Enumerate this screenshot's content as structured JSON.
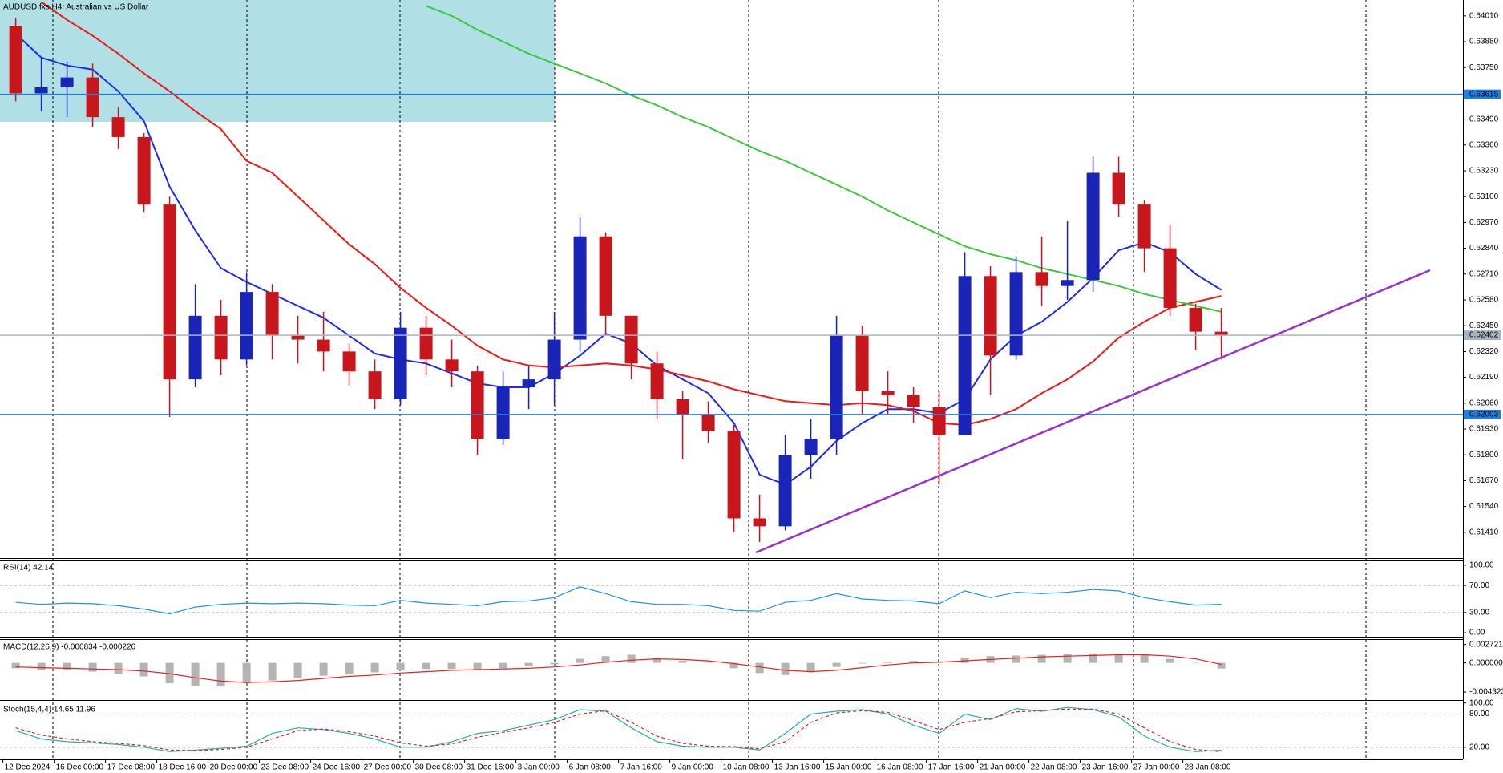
{
  "chart_data": [
    {
      "type": "candlestick",
      "title": "AUDUSD.fxs,H4:  Australian vs US Dollar",
      "categories": [
        "12 Dec 2024",
        null,
        "16 Dec 00:00",
        null,
        "17 Dec 08:00",
        null,
        "18 Dec 16:00",
        null,
        "20 Dec 00:00",
        null,
        "23 Dec 08:00",
        null,
        "24 Dec 16:00",
        null,
        "27 Dec 00:00",
        null,
        "30 Dec 08:00",
        null,
        "31 Dec 16:00",
        null,
        "3 Jan 00:00",
        null,
        "6 Jan 08:00",
        null,
        "7 Jan 16:00",
        null,
        "9 Jan 00:00",
        null,
        "10 Jan 08:00",
        null,
        "13 Jan 16:00",
        null,
        "15 Jan 00:00",
        null,
        "16 Jan 08:00",
        null,
        "17 Jan 16:00",
        null,
        "21 Jan 00:00",
        null,
        "22 Jan 08:00",
        null,
        "23 Jan 16:00",
        null,
        "27 Jan 00:00",
        null,
        "28 Jan 08:00",
        null
      ],
      "open": [
        0.6396,
        0.6362,
        0.6365,
        0.637,
        0.635,
        0.634,
        0.6306,
        0.6218,
        0.625,
        0.6228,
        0.6262,
        0.624,
        0.6238,
        0.6232,
        0.6222,
        0.6208,
        0.6244,
        0.6228,
        0.6222,
        0.6188,
        0.6214,
        0.6218,
        0.6238,
        0.629,
        0.625,
        0.6226,
        0.6208,
        0.62,
        0.6192,
        0.6148,
        0.6144,
        0.618,
        0.6188,
        0.624,
        0.6212,
        0.621,
        0.6204,
        0.619,
        0.627,
        0.623,
        0.6272,
        0.6265,
        0.6268,
        0.6322,
        0.6306,
        0.6284,
        0.6254,
        0.6242
      ],
      "high": [
        0.64,
        0.638,
        0.6378,
        0.6377,
        0.6355,
        0.6342,
        0.631,
        0.6266,
        0.6258,
        0.6272,
        0.6266,
        0.625,
        0.6252,
        0.6236,
        0.6228,
        0.6252,
        0.625,
        0.6238,
        0.6225,
        0.6222,
        0.6225,
        0.6252,
        0.63,
        0.6292,
        0.625,
        0.6232,
        0.6212,
        0.6207,
        0.6195,
        0.616,
        0.619,
        0.6198,
        0.625,
        0.6245,
        0.6222,
        0.6214,
        0.6212,
        0.6282,
        0.6275,
        0.628,
        0.629,
        0.6298,
        0.633,
        0.633,
        0.6308,
        0.6296,
        0.6256,
        0.6254
      ],
      "low": [
        0.6358,
        0.6353,
        0.635,
        0.6345,
        0.6334,
        0.6302,
        0.6199,
        0.6214,
        0.622,
        0.6225,
        0.6228,
        0.6226,
        0.6222,
        0.6215,
        0.6203,
        0.6205,
        0.622,
        0.6214,
        0.618,
        0.6185,
        0.6203,
        0.6205,
        0.6232,
        0.624,
        0.6218,
        0.6198,
        0.6178,
        0.6186,
        0.6141,
        0.6136,
        0.6142,
        0.6168,
        0.618,
        0.62,
        0.62,
        0.6196,
        0.6165,
        0.619,
        0.621,
        0.6228,
        0.6255,
        0.6258,
        0.6262,
        0.63,
        0.6272,
        0.625,
        0.6233,
        0.6228
      ],
      "close": [
        0.6362,
        0.6365,
        0.637,
        0.635,
        0.634,
        0.6306,
        0.6218,
        0.625,
        0.6228,
        0.6262,
        0.624,
        0.6238,
        0.6232,
        0.6222,
        0.6208,
        0.6244,
        0.6228,
        0.6222,
        0.6188,
        0.6214,
        0.6218,
        0.6238,
        0.629,
        0.625,
        0.6226,
        0.6208,
        0.62,
        0.6192,
        0.6148,
        0.6144,
        0.618,
        0.6188,
        0.624,
        0.6212,
        0.621,
        0.6204,
        0.619,
        0.627,
        0.623,
        0.6272,
        0.6265,
        0.6268,
        0.6322,
        0.6306,
        0.6284,
        0.6254,
        0.6242,
        0.62402
      ],
      "up_color": "#1a24b8",
      "down_color": "#c8161d",
      "overlays": [
        {
          "color": "#1c2cf0",
          "values": [
            0.6392,
            0.638,
            0.6376,
            0.6374,
            0.6363,
            0.6348,
            0.6315,
            0.6293,
            0.6274,
            0.6267,
            0.6261,
            0.6255,
            0.6249,
            0.624,
            0.6231,
            0.6228,
            0.6226,
            0.6221,
            0.6216,
            0.6214,
            0.6214,
            0.6221,
            0.623,
            0.6241,
            0.6236,
            0.6225,
            0.6218,
            0.6211,
            0.6196,
            0.617,
            0.6165,
            0.6174,
            0.6187,
            0.6196,
            0.6203,
            0.6203,
            0.6201,
            0.6208,
            0.6228,
            0.624,
            0.6247,
            0.6257,
            0.6269,
            0.6283,
            0.6287,
            0.6282,
            0.6271,
            0.6263
          ]
        },
        {
          "color": "#f01818",
          "values": [
            null,
            0.6408,
            0.6399,
            0.6391,
            0.6382,
            0.6372,
            0.6363,
            0.6353,
            0.6344,
            0.6328,
            0.6322,
            0.631,
            0.6298,
            0.6286,
            0.6276,
            0.6264,
            0.6254,
            0.6245,
            0.6235,
            0.6228,
            0.6225,
            0.6224,
            0.6225,
            0.6226,
            0.6225,
            0.6223,
            0.622,
            0.6217,
            0.6213,
            0.621,
            0.6207,
            0.6206,
            0.6205,
            0.6206,
            0.6205,
            0.6202,
            0.6196,
            0.6195,
            0.6198,
            0.6203,
            0.6211,
            0.6218,
            0.6227,
            0.6239,
            0.6247,
            0.6254,
            0.6257,
            0.626
          ]
        },
        {
          "color": "#3cc83c",
          "values": [
            null,
            null,
            null,
            null,
            null,
            null,
            null,
            null,
            null,
            null,
            null,
            null,
            null,
            null,
            null,
            null,
            0.6406,
            0.6401,
            0.6394,
            0.6388,
            0.6382,
            0.6377,
            0.6372,
            0.6367,
            0.6361,
            0.6356,
            0.635,
            0.6345,
            0.6339,
            0.6333,
            0.6328,
            0.6322,
            0.6316,
            0.631,
            0.6303,
            0.6297,
            0.6291,
            0.6285,
            0.6281,
            0.6278,
            0.6274,
            0.6271,
            0.6268,
            0.6265,
            0.6261,
            0.6258,
            0.6255,
            0.6252
          ]
        }
      ],
      "hlines": [
        {
          "value": 0.63615,
          "color": "#1e7fe0"
        },
        {
          "value": 0.62003,
          "color": "#1e7fe0"
        },
        {
          "value": 0.62402,
          "color": "#a9b4c2"
        }
      ],
      "ylim": [
        0.6128,
        0.6409
      ],
      "yticks": [
        {
          "value": 0.6401,
          "label": "0.64010"
        },
        {
          "value": 0.6388,
          "label": "0.63880"
        },
        {
          "value": 0.6375,
          "label": "0.63750"
        },
        {
          "value": 0.6349,
          "label": "0.63490"
        },
        {
          "value": 0.6336,
          "label": "0.63360"
        },
        {
          "value": 0.6323,
          "label": "0.63230"
        },
        {
          "value": 0.631,
          "label": "0.63100"
        },
        {
          "value": 0.6297,
          "label": "0.62970"
        },
        {
          "value": 0.6284,
          "label": "0.62840"
        },
        {
          "value": 0.6271,
          "label": "0.62710"
        },
        {
          "value": 0.6258,
          "label": "0.62580"
        },
        {
          "value": 0.6245,
          "label": "0.62450"
        },
        {
          "value": 0.6232,
          "label": "0.62320"
        },
        {
          "value": 0.6219,
          "label": "0.62190"
        },
        {
          "value": 0.6206,
          "label": "0.62060"
        },
        {
          "value": 0.6193,
          "label": "0.61930"
        },
        {
          "value": 0.618,
          "label": "0.61800"
        },
        {
          "value": 0.6167,
          "label": "0.61670"
        },
        {
          "value": 0.6154,
          "label": "0.61540"
        },
        {
          "value": 0.6141,
          "label": "0.61410"
        }
      ]
    },
    {
      "type": "indicator",
      "title": "RSI(14) 42.14",
      "series": [
        {
          "type": "line",
          "color": "#1e90ff",
          "values": [
            45,
            42,
            44,
            43,
            40,
            35,
            28,
            38,
            42,
            44,
            43,
            44,
            43,
            41,
            40,
            48,
            44,
            42,
            40,
            46,
            47,
            52,
            68,
            58,
            46,
            42,
            42,
            40,
            33,
            32,
            45,
            48,
            58,
            50,
            48,
            47,
            43,
            62,
            52,
            60,
            58,
            60,
            64,
            62,
            52,
            46,
            41,
            42.14
          ]
        }
      ],
      "levels": [
        30,
        70
      ],
      "ylim": [
        -7,
        107
      ],
      "yticks": [
        {
          "value": 100,
          "label": "100.00"
        },
        {
          "value": 70,
          "label": "70.00"
        },
        {
          "value": 30,
          "label": "30.00"
        },
        {
          "value": 0,
          "label": "0.00"
        }
      ]
    },
    {
      "type": "indicator",
      "title": "MACD(12,26,9) -0.000834 -0.000226",
      "series": [
        {
          "type": "bar",
          "color": "#b4b4b4",
          "values": [
            -0.0008,
            -0.001,
            -0.0011,
            -0.0013,
            -0.0016,
            -0.002,
            -0.003,
            -0.0034,
            -0.0035,
            -0.003,
            -0.0026,
            -0.0022,
            -0.0019,
            -0.0016,
            -0.0014,
            -0.001,
            -0.0009,
            -0.0009,
            -0.001,
            -0.0008,
            -0.0005,
            -0.0002,
            0.0006,
            0.001,
            0.0012,
            0.0008,
            0.0003,
            0.0,
            -0.0008,
            -0.0015,
            -0.0018,
            -0.0014,
            -0.0006,
            -0.0001,
            0.0002,
            0.0003,
            0.0002,
            0.0008,
            0.001,
            0.0011,
            0.0012,
            0.0013,
            0.0014,
            0.0014,
            0.0012,
            0.0006,
            0.0,
            -0.000834
          ]
        },
        {
          "type": "line",
          "color": "#e82020",
          "values": [
            -0.0006,
            -0.0007,
            -0.0008,
            -0.0009,
            -0.001,
            -0.0012,
            -0.0016,
            -0.0022,
            -0.0027,
            -0.0029,
            -0.0028,
            -0.0026,
            -0.0023,
            -0.002,
            -0.0018,
            -0.0015,
            -0.0013,
            -0.0011,
            -0.001,
            -0.0009,
            -0.0008,
            -0.0006,
            -0.0003,
            0.0001,
            0.0004,
            0.0006,
            0.0005,
            0.0003,
            -0.0001,
            -0.0006,
            -0.0011,
            -0.0013,
            -0.0011,
            -0.0007,
            -0.0003,
            0.0,
            0.0001,
            0.0003,
            0.0005,
            0.0007,
            0.0009,
            0.001,
            0.0011,
            0.0012,
            0.0012,
            0.001,
            0.0006,
            -0.000226
          ]
        }
      ],
      "levels": [],
      "ylim": [
        -0.0055,
        0.0034
      ],
      "yticks": [
        0.002721,
        {
          "value": 0,
          "label": "0.000000"
        },
        -0.004323
      ]
    },
    {
      "type": "indicator",
      "title": "Stoch(15,4,4) 14.65 11.96",
      "series": [
        {
          "type": "line",
          "color": "#20b2aa",
          "values": [
            50,
            35,
            30,
            28,
            25,
            20,
            12,
            15,
            18,
            22,
            45,
            55,
            52,
            45,
            35,
            20,
            20,
            30,
            45,
            50,
            60,
            70,
            88,
            85,
            55,
            30,
            22,
            20,
            20,
            15,
            45,
            80,
            85,
            88,
            80,
            60,
            45,
            80,
            70,
            90,
            85,
            92,
            88,
            75,
            40,
            20,
            12,
            14.65
          ]
        },
        {
          "type": "line",
          "color": "#e82020",
          "dashed": true,
          "values": [
            55,
            42,
            35,
            30,
            27,
            23,
            15,
            14,
            16,
            20,
            35,
            50,
            53,
            48,
            40,
            28,
            22,
            26,
            38,
            47,
            55,
            65,
            80,
            86,
            65,
            40,
            27,
            22,
            21,
            17,
            30,
            65,
            82,
            86,
            83,
            68,
            52,
            65,
            72,
            84,
            86,
            89,
            89,
            80,
            55,
            30,
            16,
            11.96
          ]
        }
      ],
      "levels": [
        20,
        80
      ],
      "ylim": [
        -2,
        101
      ],
      "yticks": [
        {
          "value": 100,
          "label": "100.00"
        },
        {
          "value": 80,
          "label": "80.00"
        },
        {
          "value": 20,
          "label": "20.00"
        }
      ]
    }
  ]
}
